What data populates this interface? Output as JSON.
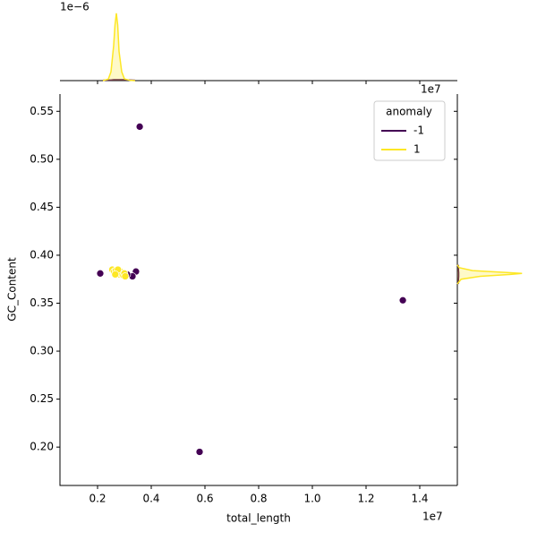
{
  "chart_data": [
    {
      "type": "scatter",
      "x_label": "total_length",
      "y_label": "GC_Content",
      "x_offset": "1e7",
      "xlim": [
        0.06,
        1.54
      ],
      "ylim": [
        0.16,
        0.568
      ],
      "xticks": [
        0.2,
        0.4,
        0.6,
        0.8,
        {
          "value": 1,
          "label": "1.0"
        },
        1.2,
        1.4
      ],
      "yticks": [
        {
          "value": 0.2,
          "label": "0.20"
        },
        0.25,
        {
          "value": 0.3,
          "label": "0.30"
        },
        0.35,
        {
          "value": 0.4,
          "label": "0.40"
        },
        0.45,
        {
          "value": 0.5,
          "label": "0.50"
        },
        0.55
      ],
      "legend_title": "anomaly",
      "legend": "upper right",
      "series": [
        {
          "name": "-1",
          "color": "#440154",
          "x": [
            0.357,
            1.337,
            0.58,
            0.21,
            0.343,
            0.33,
            0.303,
            0.31
          ],
          "values": [
            0.534,
            0.353,
            0.195,
            0.381,
            0.383,
            0.378,
            0.379,
            0.38
          ]
        },
        {
          "name": "1",
          "color": "#fde725",
          "x": [
            0.255,
            0.262,
            0.268,
            0.272,
            0.278,
            0.282,
            0.285,
            0.288,
            0.292,
            0.296,
            0.3,
            0.276,
            0.266,
            0.303
          ],
          "values": [
            0.385,
            0.383,
            0.384,
            0.381,
            0.382,
            0.38,
            0.383,
            0.381,
            0.38,
            0.379,
            0.381,
            0.385,
            0.38,
            0.378
          ]
        }
      ]
    },
    {
      "type": "kde",
      "y_offset": "1e−6",
      "ylim": [
        0,
        2.6
      ],
      "x": [
        0.22,
        0.24,
        0.25,
        0.26,
        0.265,
        0.27,
        0.275,
        0.28,
        0.29,
        0.3,
        0.32,
        0.34
      ],
      "series": [
        {
          "name": "-1",
          "color": "#440154",
          "values": [
            0.01,
            0.02,
            0.02,
            0.03,
            0.03,
            0.03,
            0.03,
            0.03,
            0.03,
            0.03,
            0.02,
            0.01
          ]
        },
        {
          "name": "1",
          "color": "#fde725",
          "values": [
            0,
            0.05,
            0.3,
            1.2,
            1.9,
            2.3,
            1.9,
            1.0,
            0.3,
            0.06,
            0.01,
            0
          ]
        }
      ]
    },
    {
      "type": "kde-h",
      "xlim": [
        0,
        40
      ],
      "y": [
        0.37,
        0.375,
        0.378,
        0.38,
        0.381,
        0.382,
        0.384,
        0.387,
        0.39
      ],
      "series": [
        {
          "name": "-1",
          "color": "#440154",
          "values": [
            0.5,
            0.6,
            0.7,
            0.7,
            0.7,
            0.7,
            0.6,
            0.6,
            0.5
          ]
        },
        {
          "name": "1",
          "color": "#fde725",
          "values": [
            0,
            2,
            12,
            28,
            34,
            26,
            8,
            1,
            0
          ]
        }
      ]
    }
  ]
}
